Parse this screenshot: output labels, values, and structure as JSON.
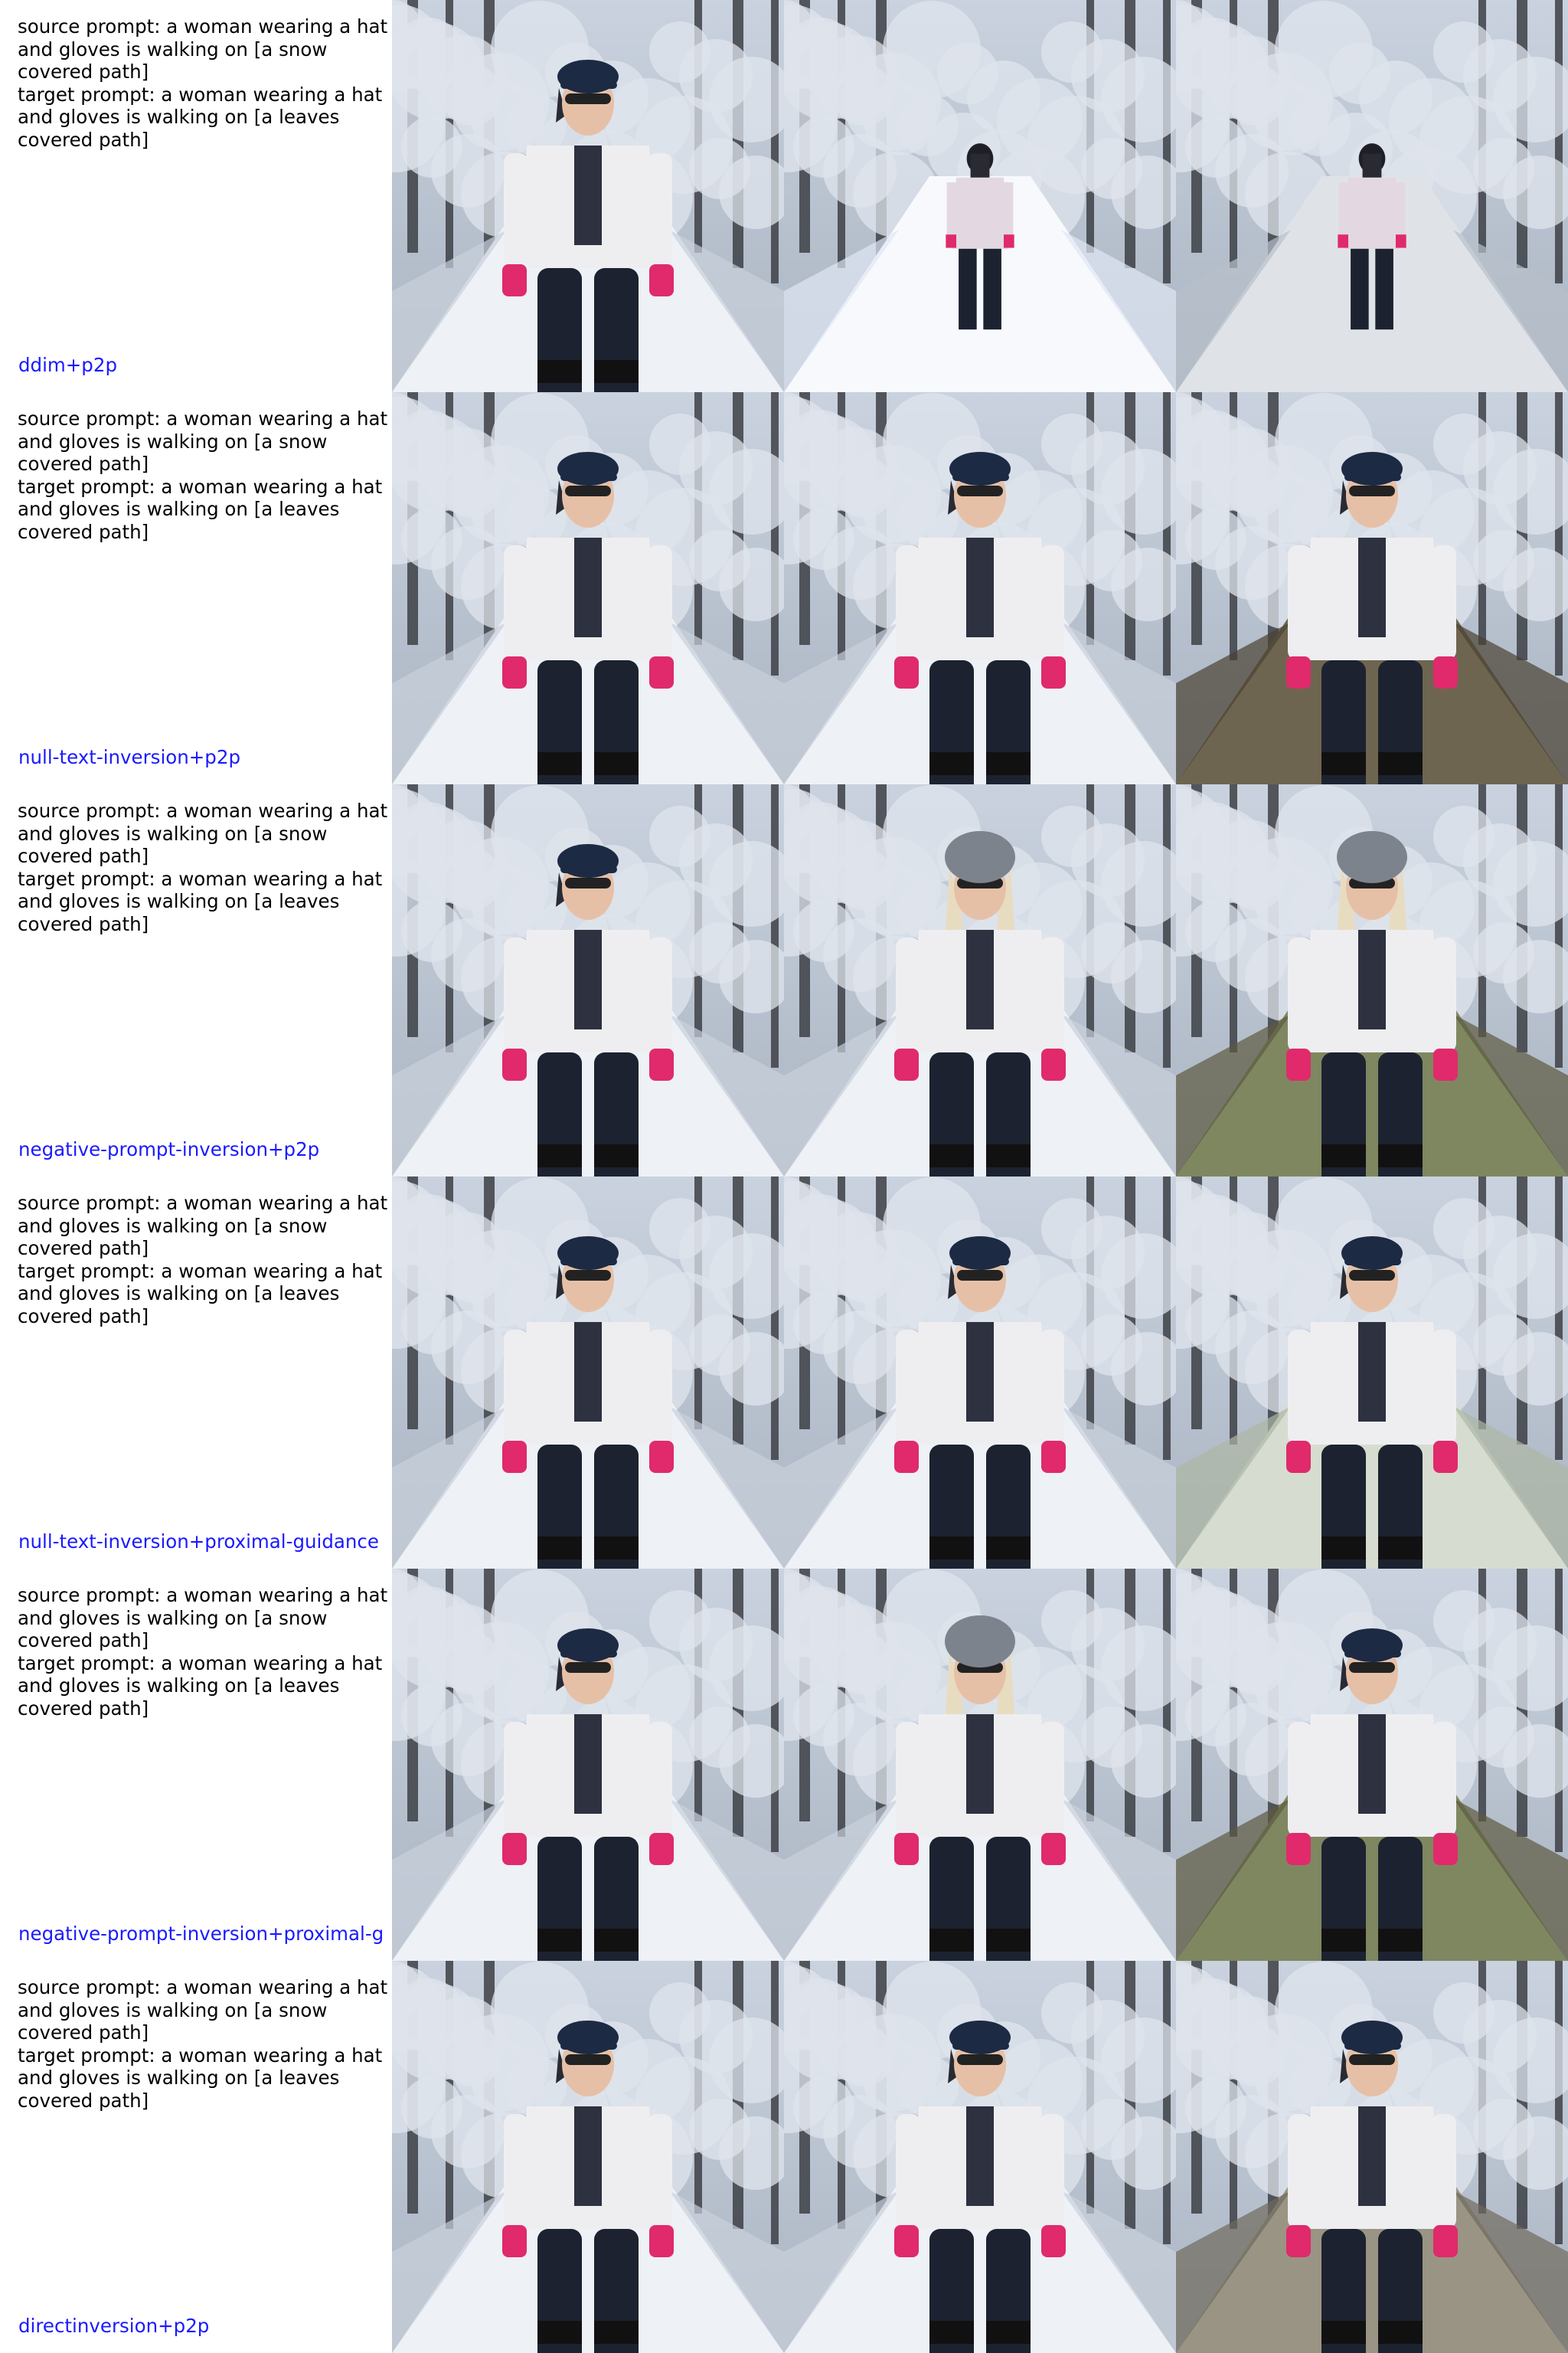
{
  "figure": {
    "rows": [
      {
        "source_prompt": "source prompt: a woman wearing a hat and gloves is walking on [a snow covered path]",
        "target_prompt": "target prompt: a woman wearing a hat and gloves is walking on [a leaves covered path]",
        "method": "ddim+p2p",
        "images": [
          "source-image",
          "reconstruction",
          "edited-image"
        ]
      },
      {
        "source_prompt": "source prompt: a woman wearing a hat and gloves is walking on [a snow covered path]",
        "target_prompt": "target prompt: a woman wearing a hat and gloves is walking on [a leaves covered path]",
        "method": "null-text-inversion+p2p",
        "images": [
          "source-image",
          "reconstruction",
          "edited-image"
        ]
      },
      {
        "source_prompt": "source prompt: a woman wearing a hat and gloves is walking on [a snow covered path]",
        "target_prompt": "target prompt: a woman wearing a hat and gloves is walking on [a leaves covered path]",
        "method": "negative-prompt-inversion+p2p",
        "images": [
          "source-image",
          "reconstruction",
          "edited-image"
        ]
      },
      {
        "source_prompt": "source prompt: a woman wearing a hat and gloves is walking on [a snow covered path]",
        "target_prompt": "target prompt: a woman wearing a hat and gloves is walking on [a leaves covered path]",
        "method": "null-text-inversion+proximal-guidance",
        "images": [
          "source-image",
          "reconstruction",
          "edited-image"
        ]
      },
      {
        "source_prompt": "source prompt: a woman wearing a hat and gloves is walking on [a snow covered path]",
        "target_prompt": "target prompt: a woman wearing a hat and gloves is walking on [a leaves covered path]",
        "method": "negative-prompt-inversion+proximal-g",
        "images": [
          "source-image",
          "reconstruction",
          "edited-image"
        ]
      },
      {
        "source_prompt": "source prompt: a woman wearing a hat and gloves is walking on [a snow covered path]",
        "target_prompt": "target prompt: a woman wearing a hat and gloves is walking on [a leaves covered path]",
        "method": "directinversion+p2p",
        "images": [
          "source-image",
          "reconstruction",
          "edited-image"
        ]
      }
    ]
  },
  "colors": {
    "method_label": "#1a1aff",
    "prompt_text": "#000000",
    "snow": "#e9edf3",
    "trees": "#9aa6b6",
    "leaves_path": "#6b604a"
  }
}
